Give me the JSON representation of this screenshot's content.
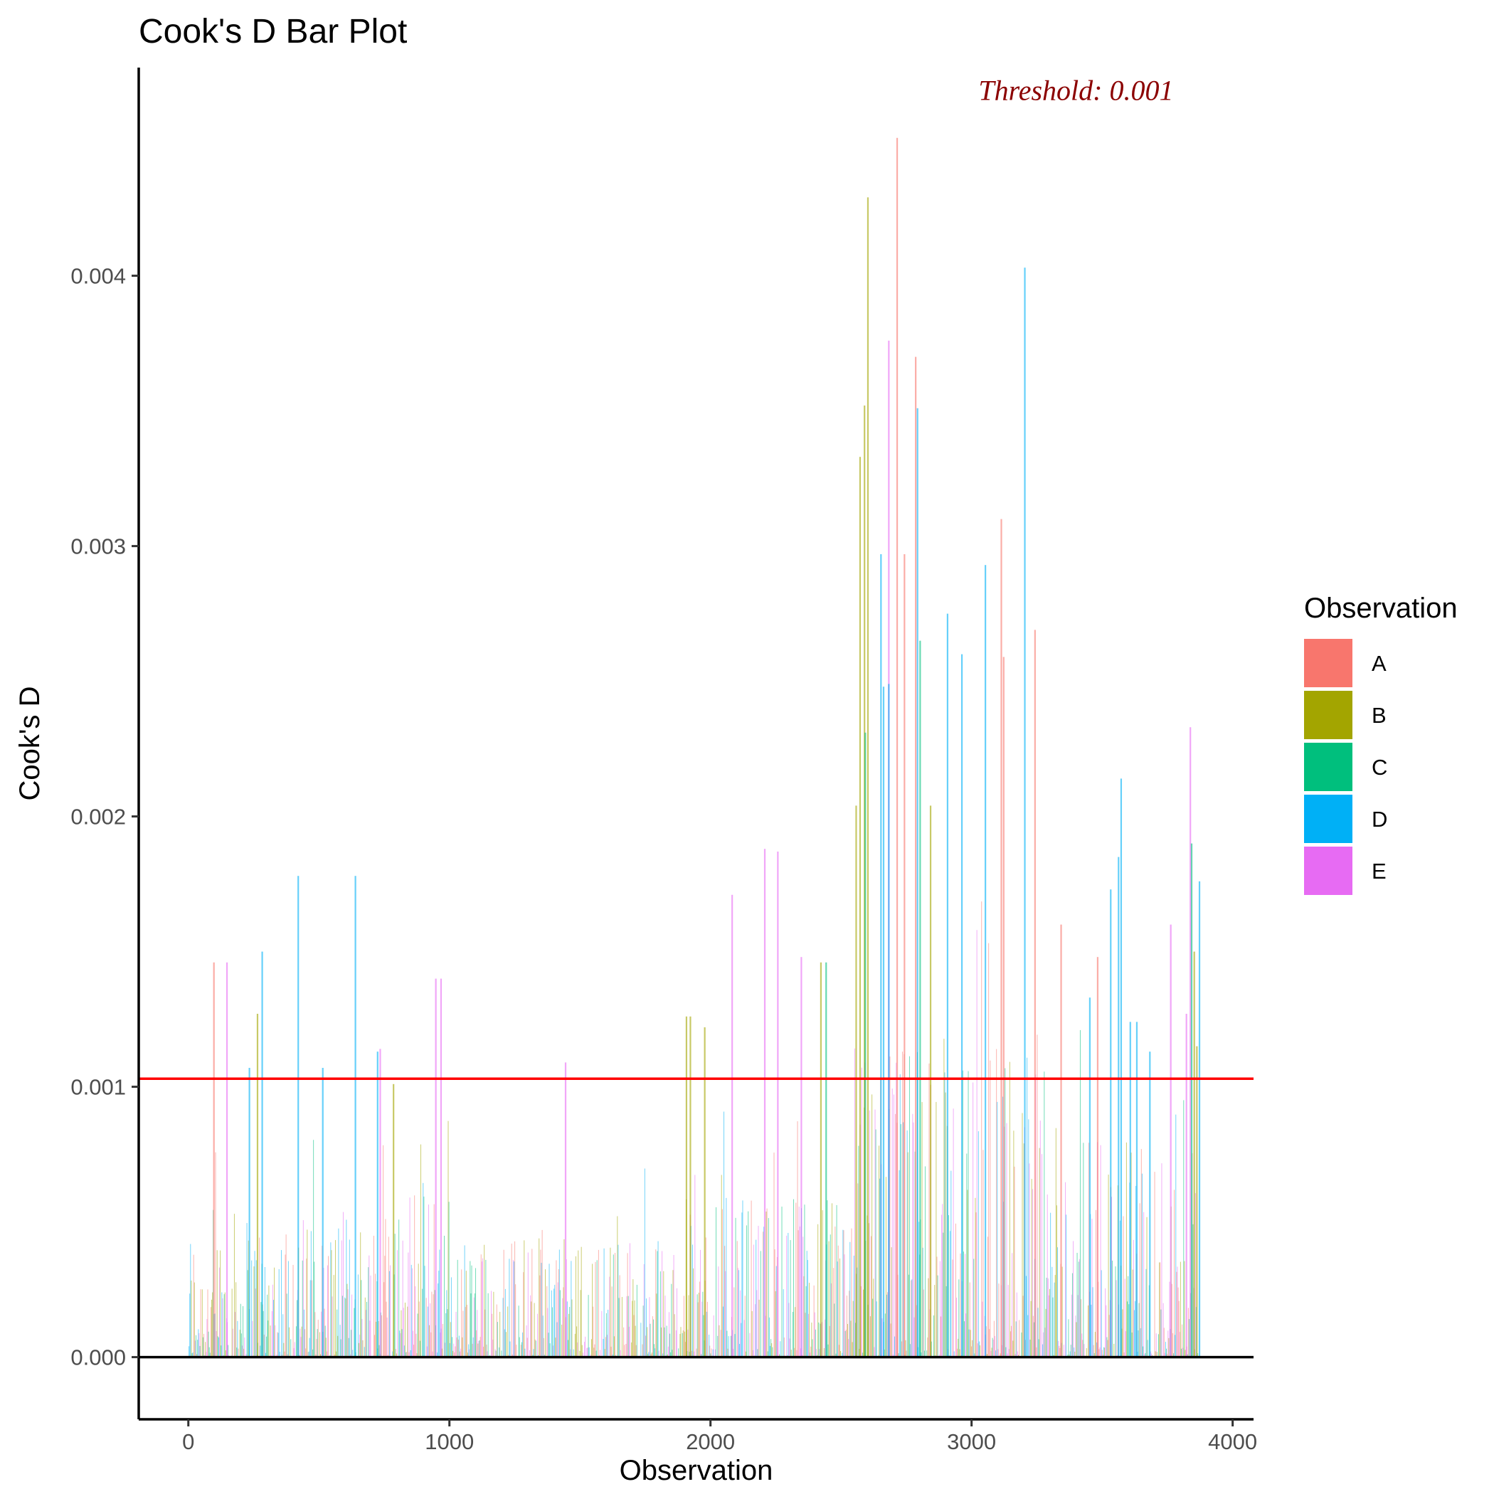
{
  "chart_data": {
    "type": "bar",
    "title": "Cook's D Bar Plot",
    "xlabel": "Observation",
    "ylabel": "Cook's D",
    "xlim": [
      -190,
      4080
    ],
    "ylim": [
      -0.00023,
      0.00477
    ],
    "x_ticks": [
      0,
      1000,
      2000,
      3000,
      4000
    ],
    "x_tick_labels": [
      "0",
      "1000",
      "2000",
      "3000",
      "4000"
    ],
    "y_ticks": [
      0.0,
      0.001,
      0.002,
      0.003,
      0.004
    ],
    "y_tick_labels": [
      "0.000",
      "0.001",
      "0.002",
      "0.003",
      "0.004"
    ],
    "threshold": 0.00103,
    "threshold_color": "#ff0000",
    "annotation": {
      "text": "Threshold: 0.001",
      "color": "#8b0000",
      "x": 3400,
      "y": 0.00465
    },
    "grid": false,
    "legend": {
      "title": "Observation",
      "position": "right",
      "entries": [
        {
          "label": "A",
          "color": "#F8766D"
        },
        {
          "label": "B",
          "color": "#A3A500"
        },
        {
          "label": "C",
          "color": "#00BF7D"
        },
        {
          "label": "D",
          "color": "#00B0F6"
        },
        {
          "label": "E",
          "color": "#E76BF3"
        }
      ]
    },
    "n_observations": 3870,
    "highlighted_bars": [
      {
        "x": 2712,
        "value": 0.00451,
        "group": "A"
      },
      {
        "x": 2600,
        "value": 0.00429,
        "group": "B"
      },
      {
        "x": 3201,
        "value": 0.00403,
        "group": "D"
      },
      {
        "x": 2680,
        "value": 0.00376,
        "group": "E"
      },
      {
        "x": 2783,
        "value": 0.0037,
        "group": "A"
      },
      {
        "x": 2587,
        "value": 0.00352,
        "group": "B"
      },
      {
        "x": 2790,
        "value": 0.00351,
        "group": "D"
      },
      {
        "x": 2570,
        "value": 0.00333,
        "group": "B"
      },
      {
        "x": 3111,
        "value": 0.0031,
        "group": "A"
      },
      {
        "x": 2650,
        "value": 0.00297,
        "group": "D"
      },
      {
        "x": 2740,
        "value": 0.00297,
        "group": "A"
      },
      {
        "x": 3050,
        "value": 0.00293,
        "group": "D"
      },
      {
        "x": 2905,
        "value": 0.00275,
        "group": "D"
      },
      {
        "x": 3240,
        "value": 0.00269,
        "group": "A"
      },
      {
        "x": 2800,
        "value": 0.00265,
        "group": "C"
      },
      {
        "x": 2960,
        "value": 0.0026,
        "group": "D"
      },
      {
        "x": 3120,
        "value": 0.00259,
        "group": "A"
      },
      {
        "x": 2680,
        "value": 0.00249,
        "group": "D"
      },
      {
        "x": 2660,
        "value": 0.00248,
        "group": "D"
      },
      {
        "x": 3835,
        "value": 0.00233,
        "group": "E"
      },
      {
        "x": 2590,
        "value": 0.00231,
        "group": "C"
      },
      {
        "x": 3570,
        "value": 0.00214,
        "group": "D"
      },
      {
        "x": 2555,
        "value": 0.00204,
        "group": "B"
      },
      {
        "x": 2840,
        "value": 0.00204,
        "group": "B"
      },
      {
        "x": 2205,
        "value": 0.00188,
        "group": "E"
      },
      {
        "x": 2255,
        "value": 0.00187,
        "group": "E"
      },
      {
        "x": 3560,
        "value": 0.00185,
        "group": "D"
      },
      {
        "x": 3840,
        "value": 0.0019,
        "group": "C"
      },
      {
        "x": 418,
        "value": 0.00178,
        "group": "D"
      },
      {
        "x": 637,
        "value": 0.00178,
        "group": "D"
      },
      {
        "x": 3870,
        "value": 0.00176,
        "group": "D"
      },
      {
        "x": 2080,
        "value": 0.00171,
        "group": "E"
      },
      {
        "x": 3530,
        "value": 0.00173,
        "group": "D"
      },
      {
        "x": 3340,
        "value": 0.0016,
        "group": "A"
      },
      {
        "x": 3760,
        "value": 0.0016,
        "group": "E"
      },
      {
        "x": 3850,
        "value": 0.0015,
        "group": "B"
      },
      {
        "x": 280,
        "value": 0.0015,
        "group": "D"
      },
      {
        "x": 95,
        "value": 0.00146,
        "group": "A"
      },
      {
        "x": 145,
        "value": 0.00146,
        "group": "E"
      },
      {
        "x": 2420,
        "value": 0.00146,
        "group": "B"
      },
      {
        "x": 2440,
        "value": 0.00146,
        "group": "C"
      },
      {
        "x": 3480,
        "value": 0.00148,
        "group": "A"
      },
      {
        "x": 945,
        "value": 0.0014,
        "group": "E"
      },
      {
        "x": 965,
        "value": 0.0014,
        "group": "E"
      },
      {
        "x": 2345,
        "value": 0.00148,
        "group": "E"
      },
      {
        "x": 3450,
        "value": 0.00133,
        "group": "D"
      },
      {
        "x": 3820,
        "value": 0.00127,
        "group": "E"
      },
      {
        "x": 1905,
        "value": 0.00126,
        "group": "B"
      },
      {
        "x": 1920,
        "value": 0.00126,
        "group": "B"
      },
      {
        "x": 3605,
        "value": 0.00124,
        "group": "D"
      },
      {
        "x": 3630,
        "value": 0.00124,
        "group": "D"
      },
      {
        "x": 262,
        "value": 0.00127,
        "group": "B"
      },
      {
        "x": 1975,
        "value": 0.00122,
        "group": "B"
      },
      {
        "x": 722,
        "value": 0.00113,
        "group": "D"
      },
      {
        "x": 732,
        "value": 0.00114,
        "group": "E"
      },
      {
        "x": 3680,
        "value": 0.00113,
        "group": "D"
      },
      {
        "x": 1442,
        "value": 0.00109,
        "group": "E"
      },
      {
        "x": 231,
        "value": 0.00107,
        "group": "D"
      },
      {
        "x": 512,
        "value": 0.00107,
        "group": "D"
      },
      {
        "x": 3860,
        "value": 0.00115,
        "group": "B"
      },
      {
        "x": 783,
        "value": 0.00101,
        "group": "B"
      }
    ],
    "segments": [
      {
        "x_range": [
          0,
          700
        ],
        "typical_max": 0.00055
      },
      {
        "x_range": [
          700,
          1000
        ],
        "typical_max": 0.00065
      },
      {
        "x_range": [
          1000,
          1500
        ],
        "typical_max": 0.00045
      },
      {
        "x_range": [
          1500,
          1900
        ],
        "typical_max": 0.00045
      },
      {
        "x_range": [
          1900,
          2550
        ],
        "typical_max": 0.0006
      },
      {
        "x_range": [
          2550,
          3300
        ],
        "typical_max": 0.0012
      },
      {
        "x_range": [
          3300,
          3870
        ],
        "typical_max": 0.0008
      }
    ]
  }
}
